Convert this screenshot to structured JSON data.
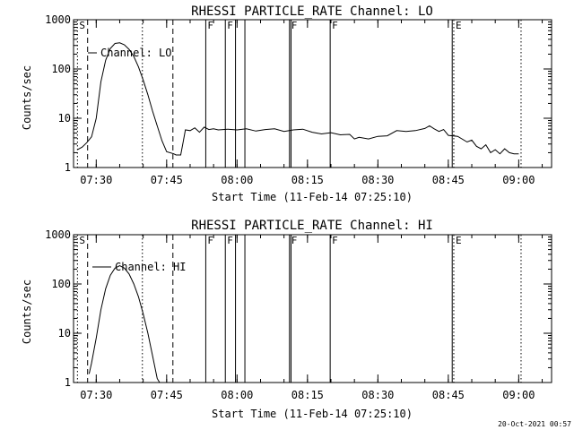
{
  "chart_data": [
    {
      "type": "line",
      "title": "RHESSI PARTICLE_RATE Channel: LO",
      "xlabel": "Start Time (11-Feb-14 07:25:10)",
      "ylabel": "Counts/sec",
      "yscale": "log",
      "ylim": [
        1,
        1000
      ],
      "xlim": [
        "07:25:10",
        "09:07:00"
      ],
      "x_ticks": [
        "07:30",
        "07:45",
        "08:00",
        "08:15",
        "08:30",
        "08:45",
        "09:00"
      ],
      "y_ticks": [
        "1",
        "10",
        "100",
        "1000"
      ],
      "legend": "Channel: LO",
      "markers": [
        {
          "label": "S",
          "time": "07:26:00",
          "style": "dotted"
        },
        {
          "label": "F",
          "time": "07:53:20",
          "style": "solid"
        },
        {
          "label": "F",
          "time": "07:57:30",
          "style": "solid"
        },
        {
          "label": "F",
          "time": "08:11:10",
          "style": "solid"
        },
        {
          "label": "F",
          "time": "08:19:50",
          "style": "solid"
        },
        {
          "label": "E",
          "time": "08:46:10",
          "style": "dotted"
        }
      ],
      "vlines": [
        {
          "time": "07:28:10",
          "style": "dashed"
        },
        {
          "time": "07:39:50",
          "style": "dotted"
        },
        {
          "time": "07:46:20",
          "style": "dashed"
        },
        {
          "time": "07:59:40",
          "style": "solid"
        },
        {
          "time": "08:01:40",
          "style": "solid"
        },
        {
          "time": "08:11:30",
          "style": "solid"
        },
        {
          "time": "08:45:50",
          "style": "solid"
        },
        {
          "time": "09:00:30",
          "style": "dotted"
        }
      ],
      "series": [
        {
          "name": "Channel: LO",
          "points": [
            [
              "07:26:00",
              2.3
            ],
            [
              "07:27:00",
              2.6
            ],
            [
              "07:28:00",
              3.2
            ],
            [
              "07:29:00",
              4.2
            ],
            [
              "07:30:00",
              10
            ],
            [
              "07:31:00",
              55
            ],
            [
              "07:32:00",
              150
            ],
            [
              "07:33:00",
              260
            ],
            [
              "07:34:00",
              330
            ],
            [
              "07:35:00",
              340
            ],
            [
              "07:36:00",
              310
            ],
            [
              "07:37:00",
              250
            ],
            [
              "07:38:00",
              180
            ],
            [
              "07:39:00",
              110
            ],
            [
              "07:40:00",
              60
            ],
            [
              "07:41:00",
              30
            ],
            [
              "07:42:00",
              14
            ],
            [
              "07:43:00",
              7
            ],
            [
              "07:44:00",
              3.5
            ],
            [
              "07:45:00",
              2.1
            ],
            [
              "07:46:30",
              1.9
            ],
            [
              "07:47:00",
              1.8
            ],
            [
              "07:48:00",
              1.8
            ],
            [
              "07:48:30",
              3.2
            ],
            [
              "07:49:00",
              5.8
            ],
            [
              "07:50:00",
              5.6
            ],
            [
              "07:51:00",
              6.4
            ],
            [
              "07:52:00",
              5.2
            ],
            [
              "07:53:00",
              6.6
            ],
            [
              "07:54:00",
              5.9
            ],
            [
              "07:55:00",
              6.1
            ],
            [
              "07:56:00",
              5.8
            ],
            [
              "07:58:00",
              6.0
            ],
            [
              "08:00:00",
              5.8
            ],
            [
              "08:02:00",
              6.1
            ],
            [
              "08:04:00",
              5.5
            ],
            [
              "08:06:00",
              5.9
            ],
            [
              "08:08:00",
              6.1
            ],
            [
              "08:10:00",
              5.4
            ],
            [
              "08:12:00",
              5.8
            ],
            [
              "08:14:00",
              6.0
            ],
            [
              "08:16:00",
              5.2
            ],
            [
              "08:18:00",
              4.8
            ],
            [
              "08:20:00",
              5.1
            ],
            [
              "08:22:00",
              4.6
            ],
            [
              "08:24:00",
              4.7
            ],
            [
              "08:25:00",
              3.8
            ],
            [
              "08:26:00",
              4.1
            ],
            [
              "08:28:00",
              3.8
            ],
            [
              "08:30:00",
              4.3
            ],
            [
              "08:32:00",
              4.4
            ],
            [
              "08:34:00",
              5.6
            ],
            [
              "08:36:00",
              5.4
            ],
            [
              "08:38:00",
              5.6
            ],
            [
              "08:40:00",
              6.2
            ],
            [
              "08:41:00",
              7.0
            ],
            [
              "08:42:00",
              6.1
            ],
            [
              "08:43:00",
              5.4
            ],
            [
              "08:44:00",
              5.9
            ],
            [
              "08:45:00",
              4.5
            ],
            [
              "08:47:00",
              4.3
            ],
            [
              "08:49:00",
              3.3
            ],
            [
              "08:50:00",
              3.6
            ],
            [
              "08:51:00",
              2.7
            ],
            [
              "08:52:00",
              2.4
            ],
            [
              "08:53:00",
              2.9
            ],
            [
              "08:54:00",
              2.0
            ],
            [
              "08:55:00",
              2.3
            ],
            [
              "08:56:00",
              1.9
            ],
            [
              "08:57:00",
              2.4
            ],
            [
              "08:58:00",
              2.0
            ],
            [
              "08:59:00",
              1.9
            ],
            [
              "09:00:00",
              1.9
            ]
          ]
        }
      ]
    },
    {
      "type": "line",
      "title": "RHESSI PARTICLE_RATE Channel: HI",
      "xlabel": "Start Time (11-Feb-14 07:25:10)",
      "ylabel": "Counts/sec",
      "yscale": "log",
      "ylim": [
        1,
        1000
      ],
      "xlim": [
        "07:25:10",
        "09:07:00"
      ],
      "x_ticks": [
        "07:30",
        "07:45",
        "08:00",
        "08:15",
        "08:30",
        "08:45",
        "09:00"
      ],
      "y_ticks": [
        "1",
        "10",
        "100",
        "1000"
      ],
      "legend": "Channel: HI",
      "markers": [
        {
          "label": "S",
          "time": "07:26:00",
          "style": "dotted"
        },
        {
          "label": "F",
          "time": "07:53:20",
          "style": "solid"
        },
        {
          "label": "F",
          "time": "07:57:30",
          "style": "solid"
        },
        {
          "label": "F",
          "time": "08:11:10",
          "style": "solid"
        },
        {
          "label": "F",
          "time": "08:19:50",
          "style": "solid"
        },
        {
          "label": "E",
          "time": "08:46:10",
          "style": "dotted"
        }
      ],
      "vlines": [
        {
          "time": "07:28:10",
          "style": "dashed"
        },
        {
          "time": "07:39:50",
          "style": "dotted"
        },
        {
          "time": "07:46:20",
          "style": "dashed"
        },
        {
          "time": "07:59:40",
          "style": "solid"
        },
        {
          "time": "08:01:40",
          "style": "solid"
        },
        {
          "time": "08:11:30",
          "style": "solid"
        },
        {
          "time": "08:45:50",
          "style": "solid"
        },
        {
          "time": "09:00:30",
          "style": "dotted"
        }
      ],
      "series": [
        {
          "name": "Channel: HI",
          "points": [
            [
              "07:28:30",
              1.5
            ],
            [
              "07:29:00",
              2.5
            ],
            [
              "07:30:00",
              8
            ],
            [
              "07:31:00",
              30
            ],
            [
              "07:32:00",
              80
            ],
            [
              "07:33:00",
              150
            ],
            [
              "07:34:00",
              210
            ],
            [
              "07:35:00",
              235
            ],
            [
              "07:36:00",
              210
            ],
            [
              "07:37:00",
              160
            ],
            [
              "07:38:00",
              100
            ],
            [
              "07:39:00",
              55
            ],
            [
              "07:40:00",
              25
            ],
            [
              "07:41:00",
              10
            ],
            [
              "07:42:00",
              3.5
            ],
            [
              "07:43:00",
              1.2
            ],
            [
              "07:43:30",
              1.0
            ]
          ]
        }
      ]
    }
  ],
  "footer": {
    "timestamp": "20-Oct-2021 00:57"
  }
}
